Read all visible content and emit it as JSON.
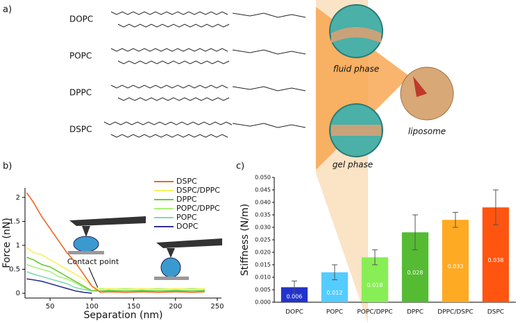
{
  "panel_a": {
    "label": "a)",
    "molecules": [
      "DOPC",
      "POPC",
      "DPPC",
      "DSPC"
    ],
    "fluid": "fluid phase",
    "gel": "gel phase",
    "liposome": "liposome"
  },
  "chart_data": [
    {
      "type": "line",
      "panel_label": "b)",
      "xlabel": "Separation (nm)",
      "ylabel": "Force (nN)",
      "annotation": "Contact point",
      "x": [
        22,
        30,
        40,
        50,
        60,
        70,
        80,
        90,
        100,
        110,
        120,
        140,
        160,
        180,
        200,
        220,
        235
      ],
      "xlim": [
        20,
        255
      ],
      "xticks": [
        50,
        100,
        150,
        200,
        250
      ],
      "ylim": [
        -0.1,
        2.2
      ],
      "yticks": [
        0,
        0.5,
        1,
        1.5,
        2
      ],
      "series": [
        {
          "name": "DSPC",
          "color": "#f26522",
          "values": [
            2.1,
            1.9,
            1.6,
            1.35,
            1.1,
            0.85,
            0.65,
            0.4,
            0.15,
            0.02,
            0.03,
            0.02,
            0.03,
            0.02,
            0.03,
            0.02,
            0.03
          ]
        },
        {
          "name": "DSPC/DPPC",
          "color": "#f5f060",
          "values": [
            0.95,
            0.85,
            0.8,
            0.7,
            0.6,
            0.5,
            0.4,
            0.3,
            0.15,
            0.08,
            0.1,
            0.08,
            0.1,
            0.08,
            0.1,
            0.08,
            0.1
          ]
        },
        {
          "name": "DPPC",
          "color": "#66cc33",
          "values": [
            0.75,
            0.7,
            0.6,
            0.55,
            0.45,
            0.35,
            0.25,
            0.15,
            0.05,
            0.05,
            0.06,
            0.05,
            0.06,
            0.05,
            0.06,
            0.05,
            0.06
          ]
        },
        {
          "name": "POPC/DPPC",
          "color": "#a6f27a",
          "values": [
            0.6,
            0.55,
            0.5,
            0.45,
            0.35,
            0.3,
            0.22,
            0.12,
            0.05,
            0.1,
            0.09,
            0.1,
            0.09,
            0.1,
            0.09,
            0.1,
            0.09
          ]
        },
        {
          "name": "POPC",
          "color": "#7fd8b0",
          "values": [
            0.45,
            0.4,
            0.35,
            0.3,
            0.25,
            0.2,
            0.12,
            0.08,
            0.05,
            0.05,
            0.04,
            0.05,
            0.04,
            0.05,
            0.04,
            0.05,
            0.04
          ]
        },
        {
          "name": "DOPC",
          "color": "#2e3192",
          "values": [
            0.3,
            0.28,
            0.25,
            0.2,
            0.15,
            0.1,
            0.05,
            0.02,
            0,
            null,
            null,
            null,
            null,
            null,
            null,
            null,
            null
          ]
        }
      ]
    },
    {
      "type": "bar",
      "panel_label": "c)",
      "ylabel": "Stiffness (N/m)",
      "categories": [
        "DOPC",
        "POPC",
        "POPC/DPPC",
        "DPPC",
        "DPPC/DSPC",
        "DSPC"
      ],
      "values": [
        0.006,
        0.012,
        0.018,
        0.028,
        0.033,
        0.038
      ],
      "errors": [
        0.0025,
        0.003,
        0.003,
        0.007,
        0.003,
        0.007
      ],
      "colors": [
        "#2233cc",
        "#55ccff",
        "#88ee55",
        "#55bb33",
        "#ffaa22",
        "#ff5511"
      ],
      "ylim": [
        0,
        0.05
      ],
      "yticks": [
        {
          "value": 0,
          "label": "0.000"
        },
        {
          "value": 0.005,
          "label": "0.005"
        },
        {
          "value": 0.01,
          "label": "0.010"
        },
        {
          "value": 0.015,
          "label": "0.015"
        },
        {
          "value": 0.02,
          "label": "0.020"
        },
        {
          "value": 0.025,
          "label": "0.025"
        },
        {
          "value": 0.03,
          "label": "0.030"
        },
        {
          "value": 0.035,
          "label": "0.035"
        },
        {
          "value": 0.04,
          "label": "0.040"
        },
        {
          "value": 0.045,
          "label": "0.045"
        },
        {
          "value": 0.05,
          "label": "0.050"
        }
      ]
    }
  ]
}
